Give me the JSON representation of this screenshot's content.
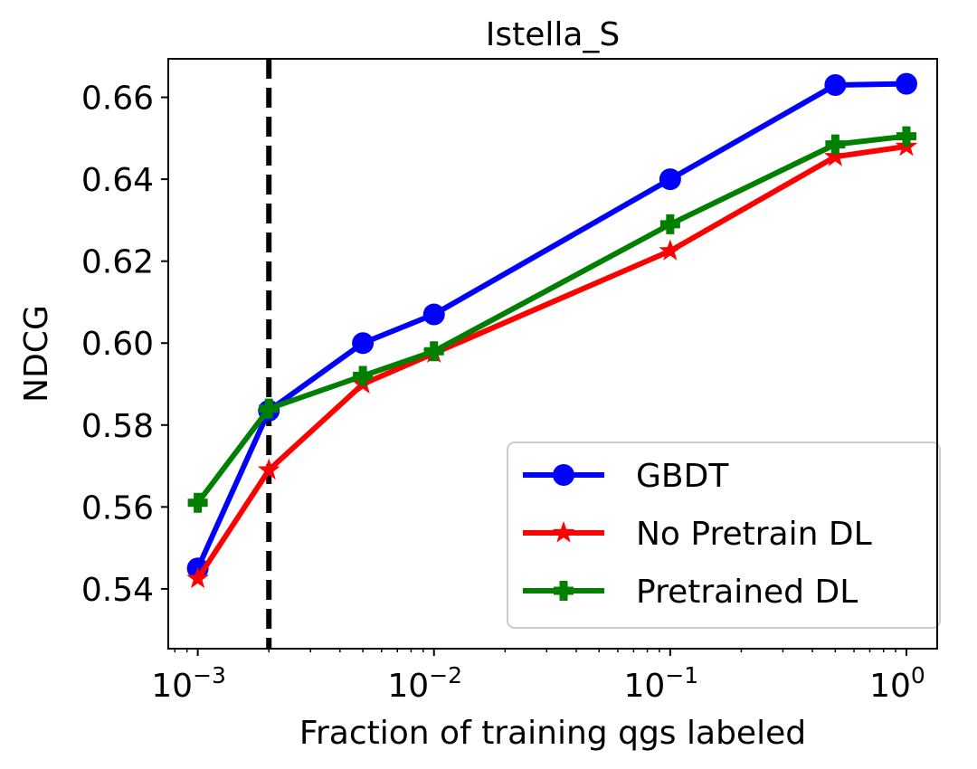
{
  "chart_data": {
    "type": "line",
    "title": "Istella_S",
    "xlabel": "Fraction of training qgs labeled",
    "ylabel": "NDCG",
    "xscale": "log",
    "xlim": [
      0.00075,
      1.35
    ],
    "ylim": [
      0.5254,
      0.6694
    ],
    "x_ticks": [
      {
        "value": 0.001,
        "base": "10",
        "exp": "−3"
      },
      {
        "value": 0.01,
        "base": "10",
        "exp": "−2"
      },
      {
        "value": 0.1,
        "base": "10",
        "exp": "−1"
      },
      {
        "value": 1,
        "base": "10",
        "exp": "0"
      }
    ],
    "y_ticks": [
      {
        "value": 0.54,
        "label": "0.54"
      },
      {
        "value": 0.56,
        "label": "0.56"
      },
      {
        "value": 0.58,
        "label": "0.58"
      },
      {
        "value": 0.6,
        "label": "0.60"
      },
      {
        "value": 0.62,
        "label": "0.62"
      },
      {
        "value": 0.64,
        "label": "0.64"
      },
      {
        "value": 0.66,
        "label": "0.66"
      }
    ],
    "vline": {
      "x": 0.002,
      "style": "dashed",
      "color": "#000000"
    },
    "grid": false,
    "legend_position": "lower-right",
    "x": [
      0.001,
      0.002,
      0.005,
      0.01,
      0.1,
      0.5,
      1.0
    ],
    "series": [
      {
        "name": "GBDT",
        "color": "#0000ff",
        "marker": "circle",
        "values": [
          0.545,
          0.5835,
          0.6,
          0.607,
          0.64,
          0.663,
          0.6633
        ]
      },
      {
        "name": "No Pretrain DL",
        "color": "#ff0000",
        "marker": "star",
        "values": [
          0.5425,
          0.569,
          0.59,
          0.5975,
          0.6225,
          0.6455,
          0.648
        ]
      },
      {
        "name": "Pretrained DL",
        "color": "#007f00",
        "marker": "plus",
        "values": [
          0.561,
          0.584,
          0.592,
          0.598,
          0.629,
          0.6485,
          0.6505
        ]
      }
    ]
  }
}
